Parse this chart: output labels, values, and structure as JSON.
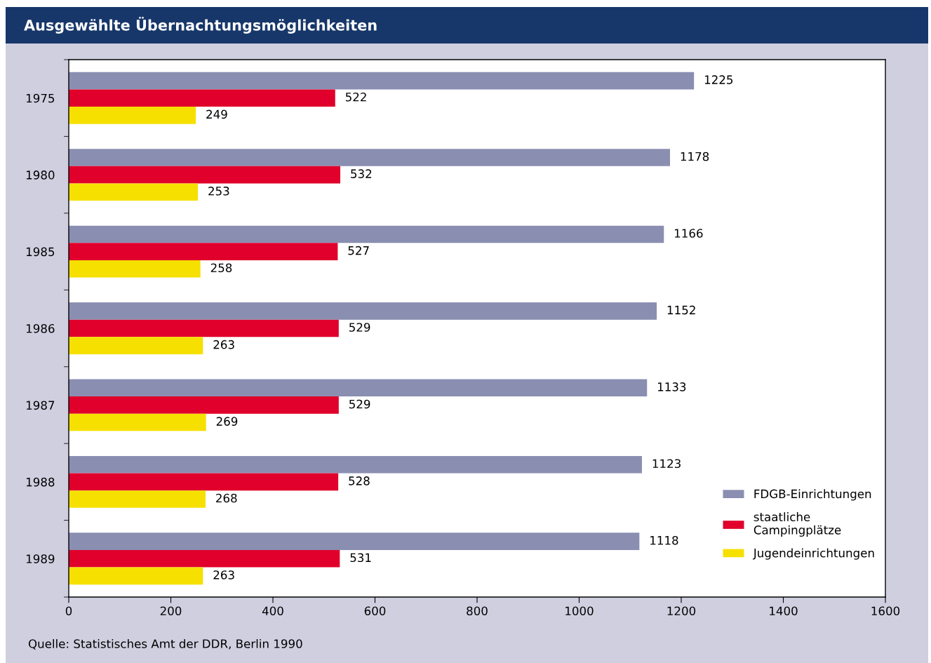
{
  "chart_data": {
    "type": "bar",
    "orientation": "horizontal",
    "title": "Ausgewählte Übernachtungsmöglichkeiten",
    "categories": [
      "1975",
      "1980",
      "1985",
      "1986",
      "1987",
      "1988",
      "1989"
    ],
    "series": [
      {
        "name": "FDGB-Einrichtungen",
        "color": "#8a8eb1",
        "values": [
          1225,
          1178,
          1166,
          1152,
          1133,
          1123,
          1118
        ]
      },
      {
        "name": "staatliche\nCampingplätze",
        "color": "#e0002b",
        "values": [
          522,
          532,
          527,
          529,
          529,
          528,
          531
        ]
      },
      {
        "name": "Jugendeinrichtungen",
        "color": "#f6e000",
        "values": [
          249,
          253,
          258,
          263,
          269,
          268,
          263
        ]
      }
    ],
    "xlim": [
      0,
      1600
    ],
    "xticks": [
      0,
      200,
      400,
      600,
      800,
      1000,
      1200,
      1400,
      1600
    ],
    "data_labels": true,
    "grid": false,
    "legend": "bottom right",
    "annotations": [
      "Quelle: Statistisches Amt der DDR, Berlin 1990"
    ]
  }
}
